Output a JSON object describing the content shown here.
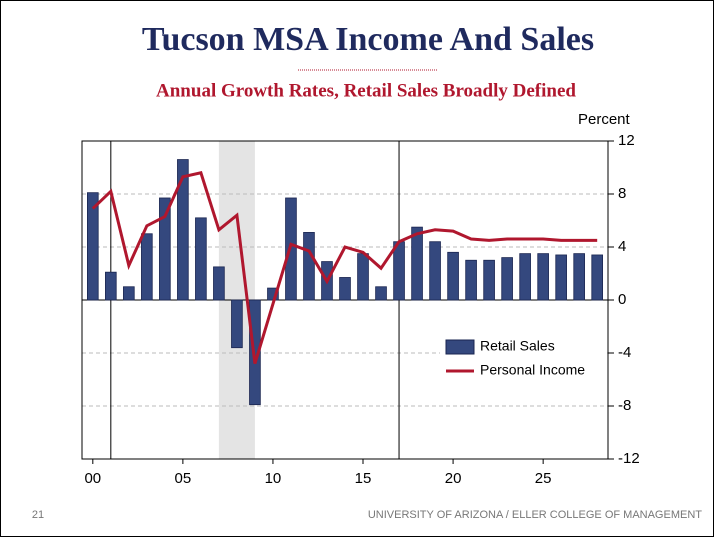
{
  "title": "Tucson MSA Income And Sales",
  "page_number": "21",
  "footer": "UNIVERSITY OF ARIZONA / ELLER COLLEGE OF MANAGEMENT",
  "chart_data": {
    "type": "bar",
    "subtitle": "Annual Growth Rates, Retail Sales Broadly Defined",
    "y_label": "Percent",
    "x": [
      0,
      1,
      2,
      3,
      4,
      5,
      6,
      7,
      8,
      9,
      10,
      11,
      12,
      13,
      14,
      15,
      16,
      17,
      18,
      19,
      20,
      21,
      22,
      23,
      24,
      25,
      26,
      27,
      28
    ],
    "xlim": [
      -0.6,
      28.6
    ],
    "xticks": [
      {
        "value": 0,
        "label": "00"
      },
      {
        "value": 5,
        "label": "05"
      },
      10,
      15,
      20,
      25
    ],
    "ylim": [
      -12,
      12
    ],
    "yticks": [
      -12,
      -8,
      -4,
      0,
      4,
      8,
      12
    ],
    "grid": true,
    "shaded_range": [
      7,
      9
    ],
    "vlines": [
      1,
      17
    ],
    "legend": "lower right",
    "series": [
      {
        "name": "Retail Sales",
        "type": "bar",
        "color": "#34487e",
        "values": [
          8.1,
          2.1,
          1.0,
          5.0,
          7.7,
          10.6,
          6.2,
          2.5,
          -3.6,
          -7.9,
          0.9,
          7.7,
          5.1,
          2.9,
          1.7,
          3.5,
          1.0,
          4.4,
          5.5,
          4.4,
          3.6,
          3.0,
          3.0,
          3.2,
          3.5,
          3.5,
          3.4,
          3.5,
          3.4
        ]
      },
      {
        "name": "Personal Income",
        "type": "line",
        "color": "#b0172e",
        "values": [
          6.9,
          8.2,
          2.6,
          5.6,
          6.3,
          9.3,
          9.6,
          5.3,
          6.4,
          -4.8,
          -0.3,
          4.2,
          3.7,
          1.4,
          4.0,
          3.6,
          2.4,
          4.4,
          5.0,
          5.3,
          5.2,
          4.6,
          4.5,
          4.6,
          4.6,
          4.6,
          4.5,
          4.5,
          4.5
        ]
      }
    ]
  }
}
